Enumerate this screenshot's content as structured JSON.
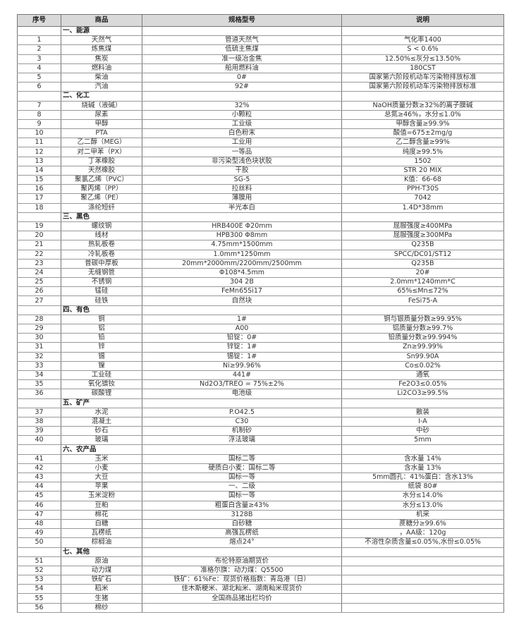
{
  "headers": [
    "序号",
    "商品",
    "规格型号",
    "说明"
  ],
  "rows": [
    {
      "section": "一、能源"
    },
    {
      "no": "1",
      "name": "天然气",
      "spec": "管道天然气",
      "note": "气化率1400"
    },
    {
      "no": "2",
      "name": "炼焦煤",
      "spec": "低硫主焦煤",
      "note": "S < 0.6%"
    },
    {
      "no": "3",
      "name": "焦炭",
      "spec": "准一级冶金焦",
      "note": "12.50%≤灰分≤13.50%"
    },
    {
      "no": "4",
      "name": "燃料油",
      "spec": "船用燃料油",
      "note": "180CST"
    },
    {
      "no": "5",
      "name": "柴油",
      "spec": "0#",
      "note": "国家第六阶段机动车污染物排放标准"
    },
    {
      "no": "6",
      "name": "汽油",
      "spec": "92#",
      "note": "国家第六阶段机动车污染物排放标准"
    },
    {
      "section": "二、化工"
    },
    {
      "no": "7",
      "name": "烧碱（液碱）",
      "spec": "32%",
      "note": "NaOH质量分数≥32%的离子膜碱"
    },
    {
      "no": "8",
      "name": "尿素",
      "spec": "小颗粒",
      "note": "总氮≥46%，水分≤1.0%"
    },
    {
      "no": "9",
      "name": "甲醇",
      "spec": "工业级",
      "note": "甲醇含量≥99.9%"
    },
    {
      "no": "10",
      "name": "PTA",
      "spec": "白色粉末",
      "note": "酸值=675±2mg/g"
    },
    {
      "no": "11",
      "name": "乙二醇（MEG）",
      "spec": "工业用",
      "note": "乙二醇含量≥99%"
    },
    {
      "no": "12",
      "name": "对二甲苯（PX）",
      "spec": "一等品",
      "note": "纯度≥99.5%"
    },
    {
      "no": "13",
      "name": "丁苯橡胶",
      "spec": "非污染型浅色块状胶",
      "note": "1502"
    },
    {
      "no": "14",
      "name": "天然橡胶",
      "spec": "干胶",
      "note": "STR 20 MIX"
    },
    {
      "no": "15",
      "name": "聚氯乙烯（PVC）",
      "spec": "SG-5",
      "note": "K值：66-68"
    },
    {
      "no": "16",
      "name": "聚丙烯（PP）",
      "spec": "拉丝料",
      "note": "PPH-T30S"
    },
    {
      "no": "17",
      "name": "聚乙烯（PE）",
      "spec": "薄膜用",
      "note": "7042"
    },
    {
      "no": "18",
      "name": "涤纶短纤",
      "spec": "半光本白",
      "note": "1.4D*38mm"
    },
    {
      "section": "三、黑色"
    },
    {
      "no": "19",
      "name": "螺纹钢",
      "spec": "HRB400E Φ20mm",
      "note": "屈服强度≥400MPa"
    },
    {
      "no": "20",
      "name": "线材",
      "spec": "HPB300 Φ8mm",
      "note": "屈服强度≥300MPa"
    },
    {
      "no": "21",
      "name": "热轧板卷",
      "spec": "4.75mm*1500mm",
      "note": "Q235B"
    },
    {
      "no": "22",
      "name": "冷轧板卷",
      "spec": "1.0mm*1250mm",
      "note": "SPCC/DC01/ST12"
    },
    {
      "no": "23",
      "name": "普碳中厚板",
      "spec": "20mm*2000mm/2200mm/2500mm",
      "note": "Q235B"
    },
    {
      "no": "24",
      "name": "无缝钢管",
      "spec": "Φ108*4.5mm",
      "note": "20#"
    },
    {
      "no": "25",
      "name": "不锈钢",
      "spec": "304 2B",
      "note": "2.0mm*1240mm*C"
    },
    {
      "no": "26",
      "name": "锰硅",
      "spec": "FeMn65Si17",
      "note": "65%≤Mn≤72%"
    },
    {
      "no": "27",
      "name": "硅铁",
      "spec": "自然块",
      "note": "FeSi75-A"
    },
    {
      "section": "四、有色"
    },
    {
      "no": "28",
      "name": "铜",
      "spec": "1#",
      "note": "铜与银质量分数≥99.95%"
    },
    {
      "no": "29",
      "name": "铝",
      "spec": "A00",
      "note": "铝质量分数≥99.7%"
    },
    {
      "no": "30",
      "name": "铅",
      "spec": "铅锭：0#",
      "note": "铅质量分数≥99.994%"
    },
    {
      "no": "31",
      "name": "锌",
      "spec": "锌锭：1#",
      "note": "Zn≥99.99%"
    },
    {
      "no": "32",
      "name": "锡",
      "spec": "锡锭：1#",
      "note": "Sn99.90A"
    },
    {
      "no": "33",
      "name": "镍",
      "spec": "Ni≥99.96%",
      "note": "Co≤0.02%"
    },
    {
      "no": "34",
      "name": "工业硅",
      "spec": "441#",
      "note": "通氧"
    },
    {
      "no": "35",
      "name": "氧化镨钕",
      "spec": "Nd2O3/TREO = 75%±2%",
      "note": "Fe2O3≤0.05%"
    },
    {
      "no": "36",
      "name": "碳酸锂",
      "spec": "电池级",
      "note": "Li2CO3≥99.5%"
    },
    {
      "section": "五、矿产"
    },
    {
      "no": "37",
      "name": "水泥",
      "spec": "P.O42.5",
      "note": "散装"
    },
    {
      "no": "38",
      "name": "混凝土",
      "spec": "C30",
      "note": "I-A"
    },
    {
      "no": "39",
      "name": "砂石",
      "spec": "机制砂",
      "note": "中砂"
    },
    {
      "no": "40",
      "name": "玻璃",
      "spec": "浮法玻璃",
      "note": "5mm"
    },
    {
      "section": "六、农产品"
    },
    {
      "no": "41",
      "name": "玉米",
      "spec": "国标二等",
      "note": "含水量 14%"
    },
    {
      "no": "42",
      "name": "小麦",
      "spec": "硬质白小麦：国标二等",
      "note": "含水量 13%"
    },
    {
      "no": "43",
      "name": "大豆",
      "spec": "国标一等",
      "note": "5mm圆孔：41%蛋白：含水13%"
    },
    {
      "no": "44",
      "name": "苹果",
      "spec": "一、二级",
      "note": "纸袋 80#"
    },
    {
      "no": "45",
      "name": "玉米淀粉",
      "spec": "国标一等",
      "note": "水分≤14.0%"
    },
    {
      "no": "46",
      "name": "豆粕",
      "spec": "粗蛋白含量≥43%",
      "note": "水分≤13.0%"
    },
    {
      "no": "47",
      "name": "棉花",
      "spec": "3128B",
      "note": "机采"
    },
    {
      "no": "48",
      "name": "白糖",
      "spec": "白砂糖",
      "note": "蔗糖分≥99.6%"
    },
    {
      "no": "49",
      "name": "瓦楞纸",
      "spec": "高强瓦楞纸",
      "note": "，AA级：120g"
    },
    {
      "no": "50",
      "name": "棕榈油",
      "spec": "熔点24°",
      "note": "不溶性杂质含量≤0.05%,水份≤0.05%"
    },
    {
      "section": "七、其他"
    },
    {
      "no": "51",
      "name": "原油",
      "spec": "布伦特原油期货价",
      "note": ""
    },
    {
      "no": "52",
      "name": "动力煤",
      "spec": "准格尔旗：动力煤：Q5500",
      "note": ""
    },
    {
      "no": "53",
      "name": "铁矿石",
      "spec": "铁矿：61%Fe：现货价格指数：青岛港（日）",
      "note": ""
    },
    {
      "no": "54",
      "name": "稻米",
      "spec": "佳木斯粳米、湖北籼米、湖南籼米现货价",
      "note": ""
    },
    {
      "no": "55",
      "name": "生猪",
      "spec": "全国商品猪出栏均价",
      "note": ""
    },
    {
      "no": "56",
      "name": "棉纱",
      "spec": "",
      "note": ""
    }
  ]
}
